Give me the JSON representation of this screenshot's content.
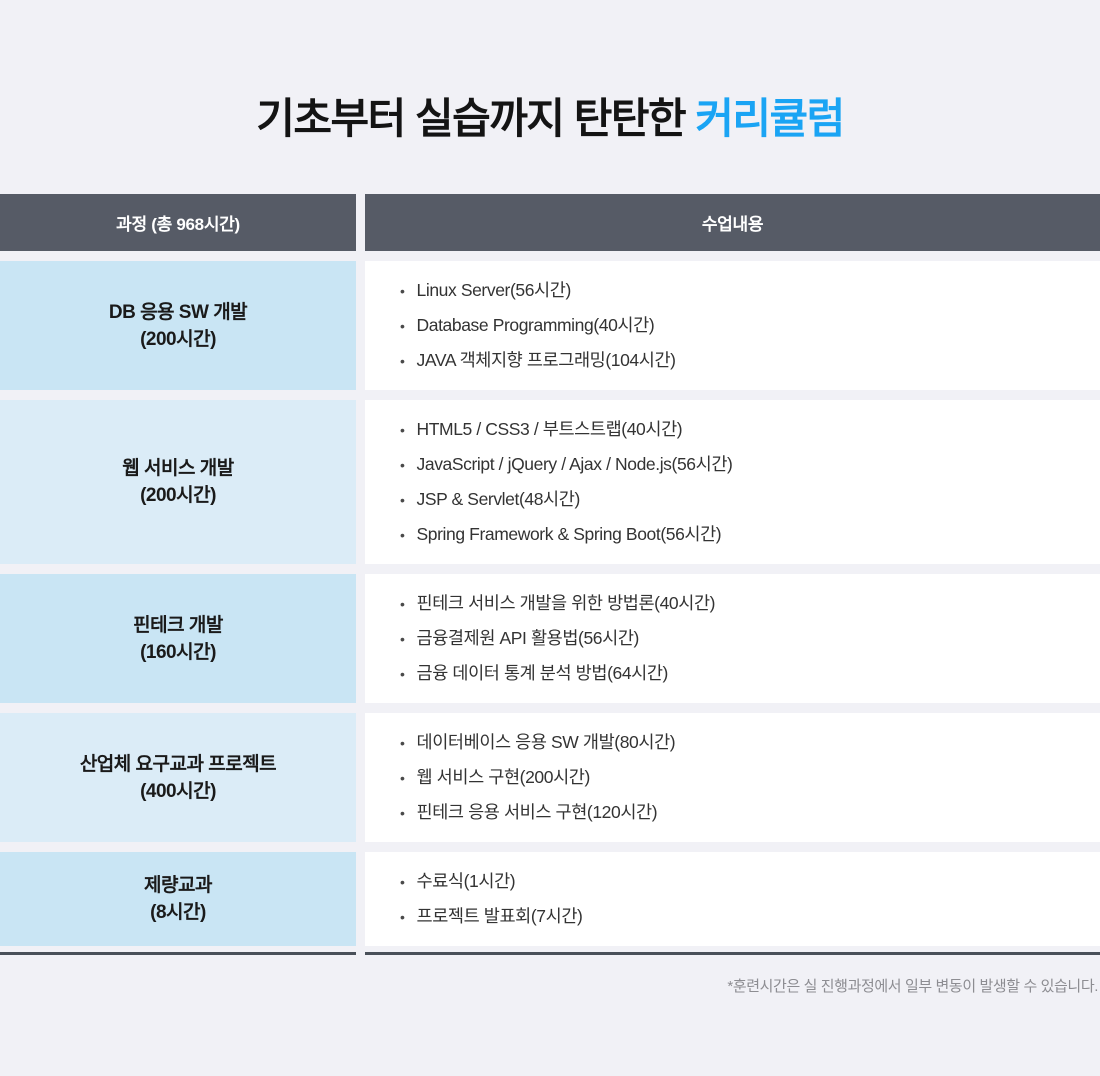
{
  "title": {
    "prefix": "기초부터 실습까지 탄탄한",
    "accent": "커리큘럼"
  },
  "table": {
    "bullet": "•",
    "headers": [
      "과정 (총 968시간)",
      "수업내용"
    ],
    "rows": [
      {
        "course": "DB 응용 SW 개발",
        "hours": "(200시간)",
        "items": [
          "Linux Server(56시간)",
          "Database Programming(40시간)",
          "JAVA 객체지향 프로그래밍(104시간)"
        ]
      },
      {
        "course": "웹 서비스 개발",
        "hours": "(200시간)",
        "items": [
          "HTML5 / CSS3 / 부트스트랩(40시간)",
          "JavaScript / jQuery / Ajax / Node.js(56시간)",
          "JSP & Servlet(48시간)",
          "Spring Framework & Spring Boot(56시간)"
        ]
      },
      {
        "course": "핀테크 개발",
        "hours": "(160시간)",
        "items": [
          "핀테크 서비스 개발을 위한 방법론(40시간)",
          "금융결제원 API 활용법(56시간)",
          "금융 데이터 통계 분석 방법(64시간)"
        ]
      },
      {
        "course": "산업체 요구교과 프로젝트",
        "hours": "(400시간)",
        "items": [
          "데이터베이스 응용 SW 개발(80시간)",
          "웹 서비스 구현(200시간)",
          "핀테크 응용 서비스 구현(120시간)"
        ]
      },
      {
        "course": "제량교과",
        "hours": "(8시간)",
        "items": [
          "수료식(1시간)",
          "프로젝트 발표회(7시간)"
        ]
      }
    ]
  },
  "footnote": "*훈련시간은 실 진행과정에서 일부 변동이 발생할 수 있습니다.",
  "colors": {
    "page-bg": "#F1F1F6",
    "header-bg": "#565B66",
    "row-blue-odd": "#C9E5F4",
    "row-blue-even": "#DBECF7",
    "cell-white": "#FFFFFF",
    "accent-blue": "#1AA4F4",
    "title-text": "#141414",
    "body-text": "#333333",
    "bullet-color": "#4A4A4A",
    "footnote-text": "#8D8D92",
    "bottom-line": "#495059"
  }
}
